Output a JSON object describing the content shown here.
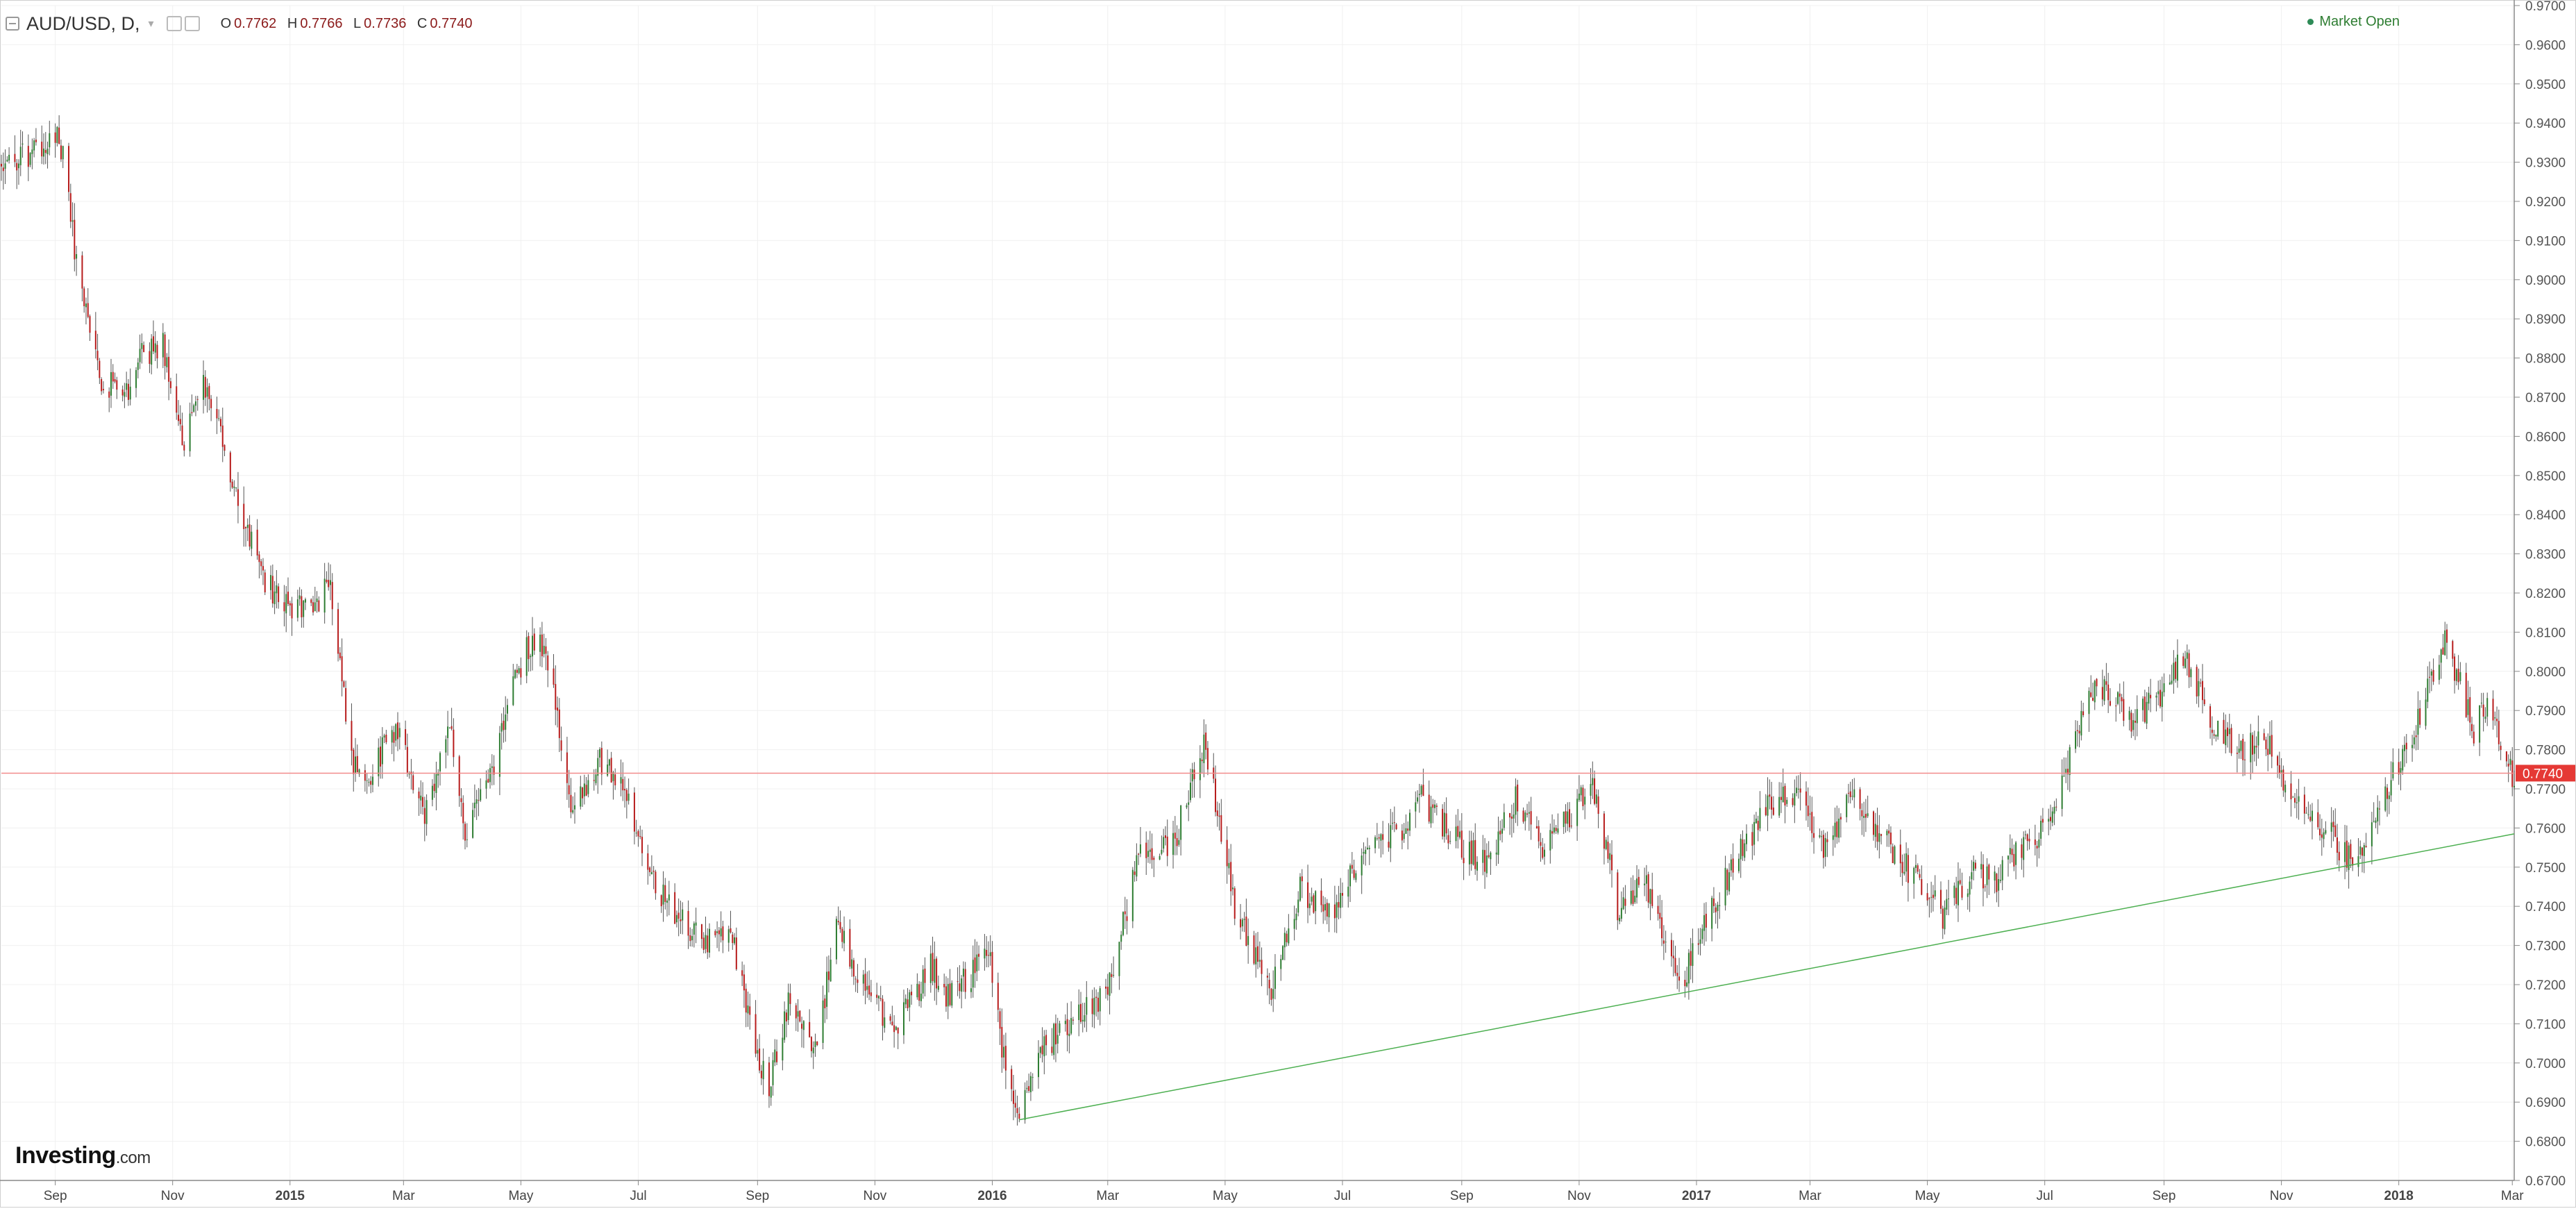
{
  "header": {
    "symbol": "AUD/USD, D,",
    "ohlc": [
      {
        "key": "O",
        "value": "0.7762"
      },
      {
        "key": "H",
        "value": "0.7766"
      },
      {
        "key": "L",
        "value": "0.7736"
      },
      {
        "key": "C",
        "value": "0.7740"
      }
    ],
    "market_status": "Market Open"
  },
  "logo": {
    "main": "Investing",
    "suffix": ".com"
  },
  "colors": {
    "up": "#2e7d32",
    "down": "#b71c1c",
    "wick": "#555555",
    "trendline": "#4caf50",
    "price_line": "#f28b8b",
    "price_badge": "#e53935",
    "grid": "#f0f0f0"
  },
  "chart_data": {
    "type": "candlestick",
    "title": "AUD/USD, D,",
    "ylim": [
      0.67,
      0.97
    ],
    "y_ticks": [
      "0.6700",
      "0.6800",
      "0.6900",
      "0.7000",
      "0.7100",
      "0.7200",
      "0.7300",
      "0.7400",
      "0.7500",
      "0.7600",
      "0.7700",
      "0.7800",
      "0.7900",
      "0.8000",
      "0.8100",
      "0.8200",
      "0.8300",
      "0.8400",
      "0.8500",
      "0.8600",
      "0.8700",
      "0.8800",
      "0.8900",
      "0.9000",
      "0.9100",
      "0.9200",
      "0.9300",
      "0.9400",
      "0.9500",
      "0.9600",
      "0.9700"
    ],
    "x_range": [
      "2014-08-04",
      "2018-03-02"
    ],
    "x_ticks": [
      {
        "label": "Sep",
        "date": "2014-09-01",
        "bold": false
      },
      {
        "label": "Nov",
        "date": "2014-11-01",
        "bold": false
      },
      {
        "label": "2015",
        "date": "2015-01-01",
        "bold": true
      },
      {
        "label": "Mar",
        "date": "2015-03-01",
        "bold": false
      },
      {
        "label": "May",
        "date": "2015-05-01",
        "bold": false
      },
      {
        "label": "Jul",
        "date": "2015-07-01",
        "bold": false
      },
      {
        "label": "Sep",
        "date": "2015-09-01",
        "bold": false
      },
      {
        "label": "Nov",
        "date": "2015-11-01",
        "bold": false
      },
      {
        "label": "2016",
        "date": "2016-01-01",
        "bold": true
      },
      {
        "label": "Mar",
        "date": "2016-03-01",
        "bold": false
      },
      {
        "label": "May",
        "date": "2016-05-01",
        "bold": false
      },
      {
        "label": "Jul",
        "date": "2016-07-01",
        "bold": false
      },
      {
        "label": "Sep",
        "date": "2016-09-01",
        "bold": false
      },
      {
        "label": "Nov",
        "date": "2016-11-01",
        "bold": false
      },
      {
        "label": "2017",
        "date": "2017-01-01",
        "bold": true
      },
      {
        "label": "Mar",
        "date": "2017-03-01",
        "bold": false
      },
      {
        "label": "May",
        "date": "2017-05-01",
        "bold": false
      },
      {
        "label": "Jul",
        "date": "2017-07-01",
        "bold": false
      },
      {
        "label": "Sep",
        "date": "2017-09-01",
        "bold": false
      },
      {
        "label": "Nov",
        "date": "2017-11-01",
        "bold": false
      },
      {
        "label": "2018",
        "date": "2018-01-01",
        "bold": true
      },
      {
        "label": "Mar",
        "date": "2018-03-01",
        "bold": false
      }
    ],
    "price_path": [
      [
        "2014-08-04",
        0.929
      ],
      [
        "2014-08-20",
        0.932
      ],
      [
        "2014-09-03",
        0.938
      ],
      [
        "2014-09-12",
        0.905
      ],
      [
        "2014-09-25",
        0.875
      ],
      [
        "2014-10-07",
        0.87
      ],
      [
        "2014-10-15",
        0.88
      ],
      [
        "2014-10-27",
        0.884
      ],
      [
        "2014-11-07",
        0.858
      ],
      [
        "2014-11-19",
        0.875
      ],
      [
        "2014-12-03",
        0.845
      ],
      [
        "2014-12-17",
        0.825
      ],
      [
        "2014-12-30",
        0.816
      ],
      [
        "2015-01-13",
        0.817
      ],
      [
        "2015-01-22",
        0.823
      ],
      [
        "2015-02-02",
        0.778
      ],
      [
        "2015-02-11",
        0.773
      ],
      [
        "2015-02-25",
        0.786
      ],
      [
        "2015-03-11",
        0.763
      ],
      [
        "2015-03-25",
        0.786
      ],
      [
        "2015-04-02",
        0.758
      ],
      [
        "2015-04-15",
        0.772
      ],
      [
        "2015-04-29",
        0.8
      ],
      [
        "2015-05-07",
        0.808
      ],
      [
        "2015-05-14",
        0.806
      ],
      [
        "2015-05-28",
        0.763
      ],
      [
        "2015-06-10",
        0.778
      ],
      [
        "2015-06-23",
        0.771
      ],
      [
        "2015-07-06",
        0.748
      ],
      [
        "2015-07-20",
        0.739
      ],
      [
        "2015-08-03",
        0.731
      ],
      [
        "2015-08-18",
        0.735
      ],
      [
        "2015-08-26",
        0.713
      ],
      [
        "2015-09-07",
        0.693
      ],
      [
        "2015-09-18",
        0.718
      ],
      [
        "2015-10-01",
        0.703
      ],
      [
        "2015-10-12",
        0.734
      ],
      [
        "2015-10-27",
        0.719
      ],
      [
        "2015-11-11",
        0.708
      ],
      [
        "2015-11-30",
        0.725
      ],
      [
        "2015-12-08",
        0.717
      ],
      [
        "2015-12-21",
        0.722
      ],
      [
        "2015-12-30",
        0.73
      ],
      [
        "2016-01-08",
        0.698
      ],
      [
        "2016-01-15",
        0.687
      ],
      [
        "2016-01-26",
        0.703
      ],
      [
        "2016-02-12",
        0.712
      ],
      [
        "2016-03-01",
        0.718
      ],
      [
        "2016-03-17",
        0.752
      ],
      [
        "2016-04-05",
        0.757
      ],
      [
        "2016-04-20",
        0.782
      ],
      [
        "2016-05-06",
        0.74
      ],
      [
        "2016-05-24",
        0.718
      ],
      [
        "2016-06-09",
        0.744
      ],
      [
        "2016-06-27",
        0.738
      ],
      [
        "2016-07-12",
        0.755
      ],
      [
        "2016-08-01",
        0.76
      ],
      [
        "2016-08-11",
        0.767
      ],
      [
        "2016-09-01",
        0.755
      ],
      [
        "2016-09-14",
        0.751
      ],
      [
        "2016-09-29",
        0.767
      ],
      [
        "2016-10-12",
        0.755
      ],
      [
        "2016-10-28",
        0.764
      ],
      [
        "2016-11-08",
        0.772
      ],
      [
        "2016-11-21",
        0.74
      ],
      [
        "2016-12-06",
        0.746
      ],
      [
        "2016-12-23",
        0.719
      ],
      [
        "2017-01-09",
        0.74
      ],
      [
        "2017-01-25",
        0.755
      ],
      [
        "2017-02-10",
        0.767
      ],
      [
        "2017-02-24",
        0.769
      ],
      [
        "2017-03-10",
        0.753
      ],
      [
        "2017-03-21",
        0.77
      ],
      [
        "2017-04-12",
        0.755
      ],
      [
        "2017-05-09",
        0.738
      ],
      [
        "2017-05-24",
        0.748
      ],
      [
        "2017-06-06",
        0.747
      ],
      [
        "2017-06-21",
        0.756
      ],
      [
        "2017-07-04",
        0.761
      ],
      [
        "2017-07-17",
        0.782
      ],
      [
        "2017-07-27",
        0.797
      ],
      [
        "2017-08-15",
        0.788
      ],
      [
        "2017-08-30",
        0.794
      ],
      [
        "2017-09-12",
        0.804
      ],
      [
        "2017-09-28",
        0.784
      ],
      [
        "2017-10-10",
        0.78
      ],
      [
        "2017-10-23",
        0.784
      ],
      [
        "2017-11-06",
        0.766
      ],
      [
        "2017-11-22",
        0.761
      ],
      [
        "2017-12-08",
        0.751
      ],
      [
        "2017-12-22",
        0.766
      ],
      [
        "2018-01-10",
        0.786
      ],
      [
        "2018-01-25",
        0.809
      ],
      [
        "2018-02-09",
        0.785
      ],
      [
        "2018-02-16",
        0.793
      ],
      [
        "2018-03-01",
        0.774
      ]
    ],
    "trendline": {
      "from": [
        "2016-01-15",
        0.6855
      ],
      "to": [
        "2018-03-02",
        0.7585
      ]
    },
    "last_price": {
      "value": 0.774,
      "label": "0.7740"
    }
  }
}
